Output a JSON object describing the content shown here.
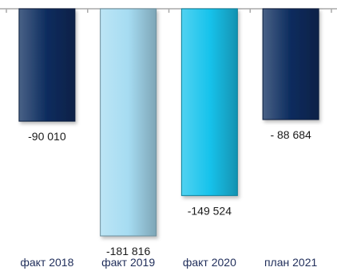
{
  "chart_data": {
    "type": "bar",
    "categories": [
      "факт 2018",
      "факт 2019",
      "факт 2020",
      "план 2021"
    ],
    "values": [
      -90010,
      -181816,
      -149524,
      -88684
    ],
    "data_labels": [
      "-90 010",
      "-181 816",
      "-149 524",
      "- 88 684"
    ],
    "ylim": [
      -200000,
      0
    ],
    "grid": false,
    "legend": "none",
    "colors": [
      "#0c2c5e",
      "#a6dcf2",
      "#17c3ec",
      "#0c2c5e"
    ]
  }
}
